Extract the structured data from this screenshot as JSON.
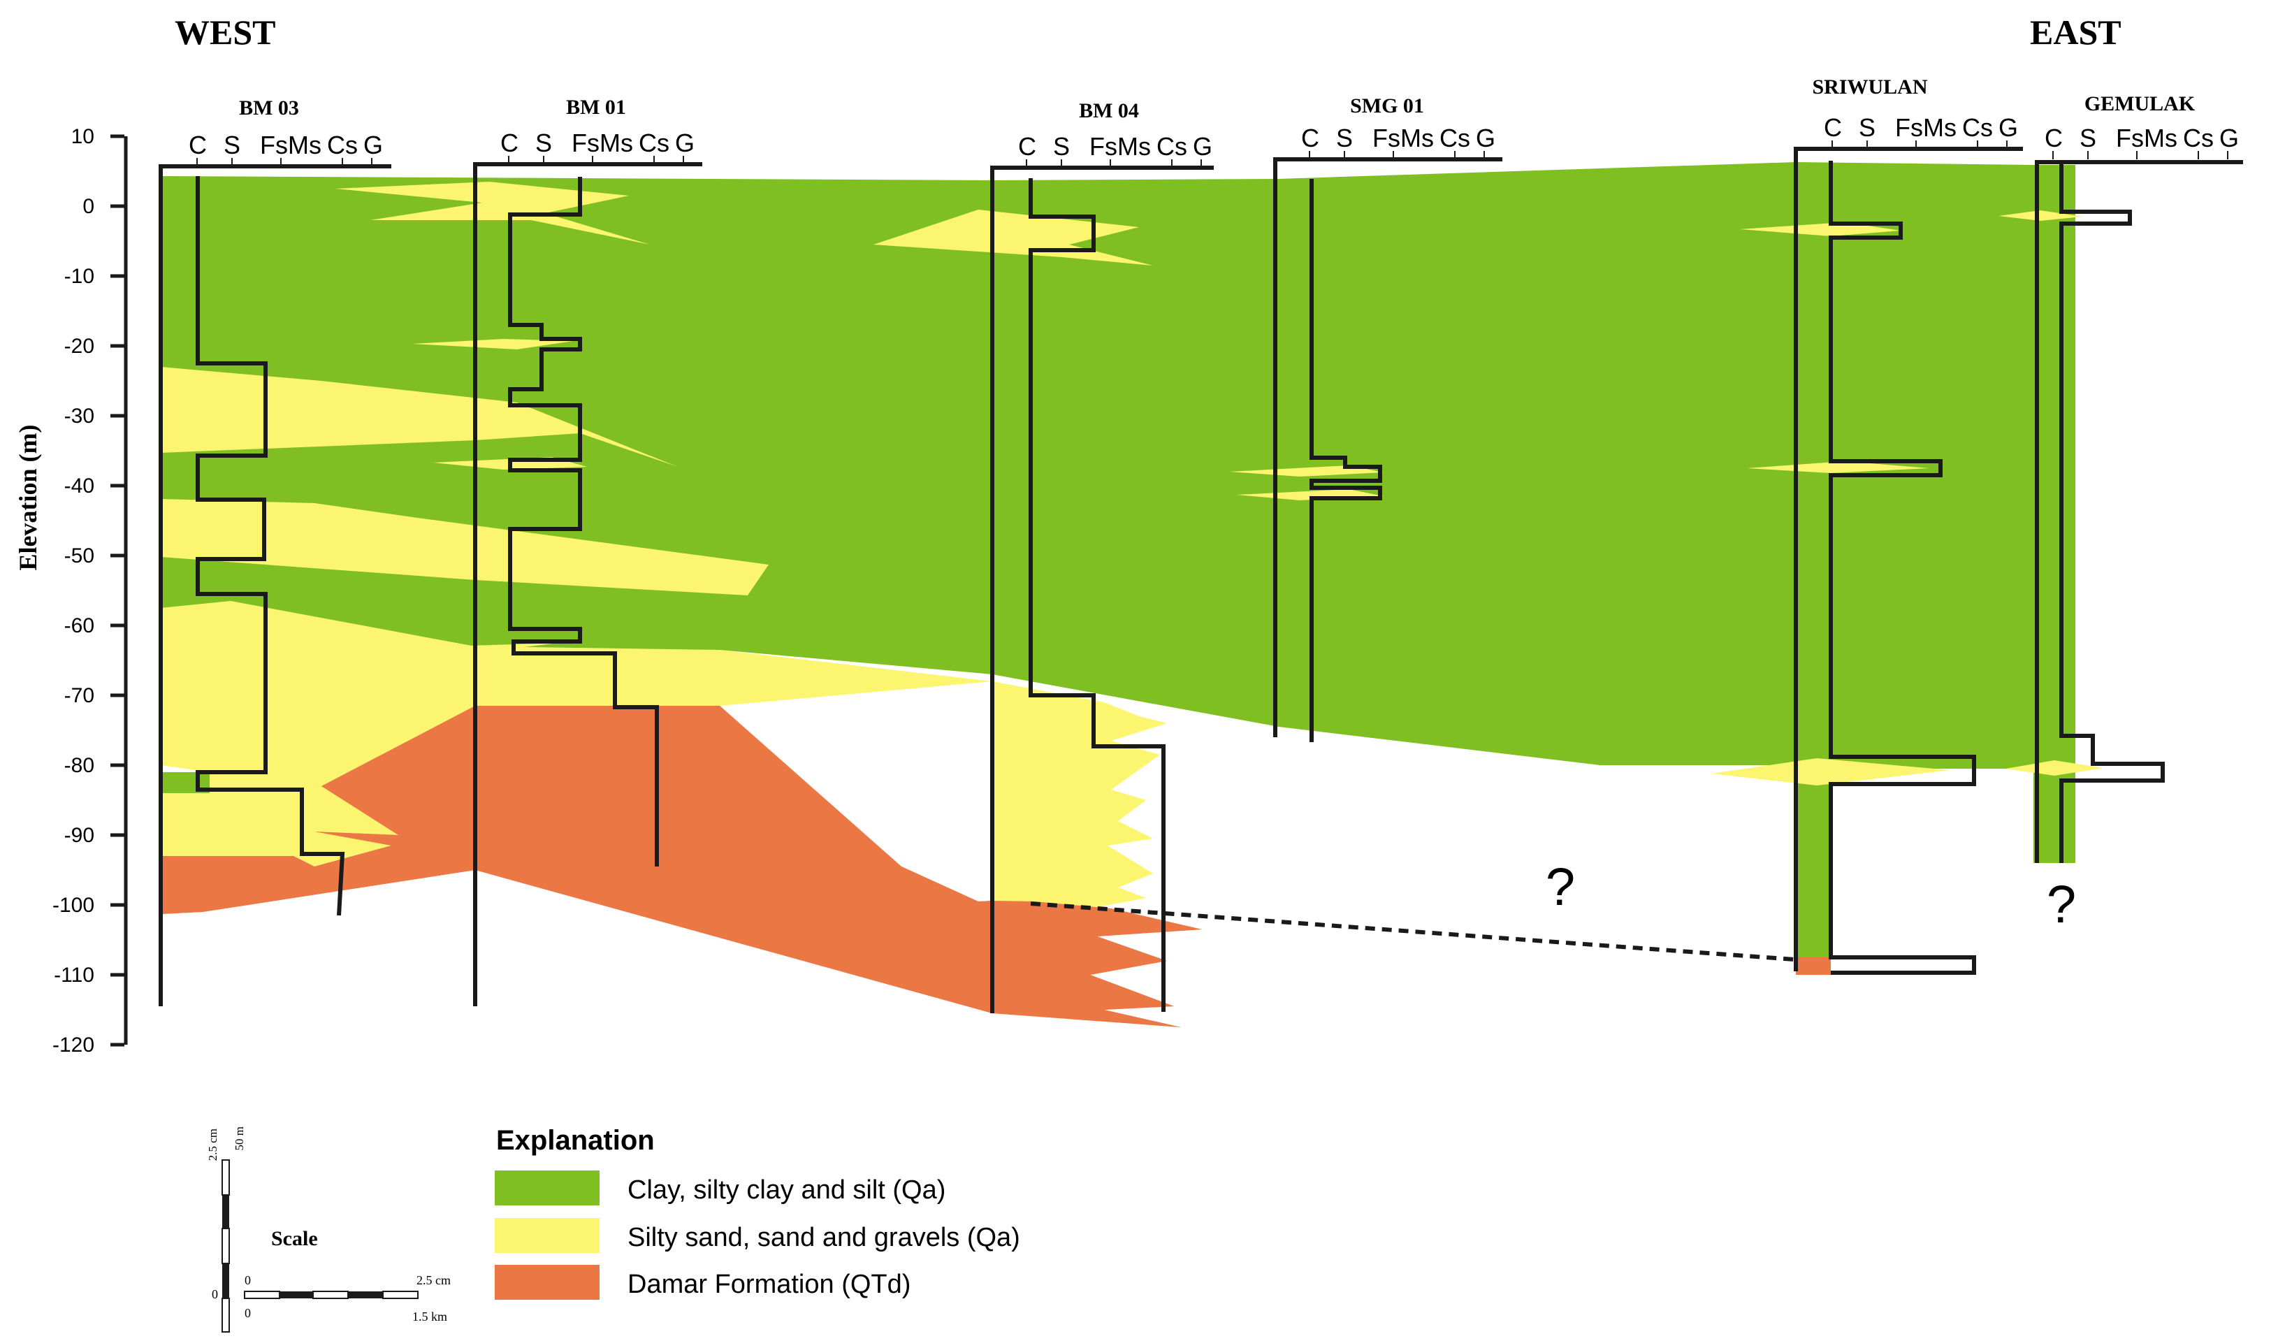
{
  "directions": {
    "west": "WEST",
    "east": "EAST"
  },
  "axis": {
    "label": "Elevation (m)",
    "ticks": [
      10,
      0,
      -10,
      -20,
      -30,
      -40,
      -50,
      -60,
      -70,
      -80,
      -90,
      -100,
      -110,
      -120
    ]
  },
  "grain_scale_labels": [
    "C",
    "S",
    "FsMs",
    "Cs",
    "G"
  ],
  "wells": [
    {
      "name": "BM 03"
    },
    {
      "name": "BM 01"
    },
    {
      "name": "BM 04"
    },
    {
      "name": "SMG 01"
    },
    {
      "name": "SRIWULAN"
    },
    {
      "name": "GEMULAK"
    }
  ],
  "unknown_marks": [
    "?",
    "?"
  ],
  "legend": {
    "title": "Explanation",
    "items": [
      {
        "label": "Clay, silty clay and silt (Qa)",
        "color": "#7fbf22"
      },
      {
        "label": "Silty sand, sand and gravels (Qa)",
        "color": "#fcf56f"
      },
      {
        "label": "Damar Formation (QTd)",
        "color": "#eb7745"
      }
    ]
  },
  "scale_bar": {
    "title": "Scale",
    "vertical_cm": "2.5 cm",
    "vertical_m": "50 m",
    "vertical_zero": "0",
    "horizontal_cm": "2.5 cm",
    "horizontal_km": "1.5 km",
    "horizontal_zero_top": "0",
    "horizontal_zero_bottom": "0"
  },
  "colors": {
    "clay": "#7fbf22",
    "sand": "#fcf56f",
    "damar": "#eb7745",
    "line": "#1a1a1a"
  }
}
